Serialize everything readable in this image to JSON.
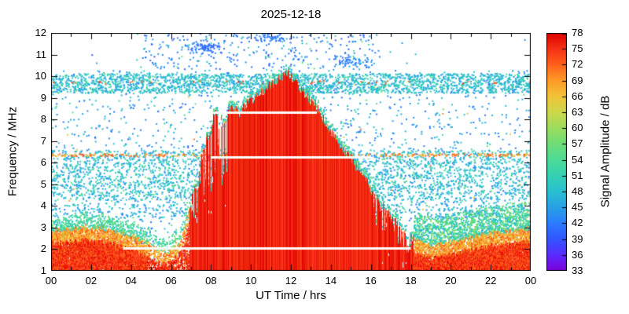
{
  "chart_data": {
    "type": "heatmap",
    "title": "2025-12-18",
    "xlabel": "UT Time / hrs",
    "ylabel": "Frequency / MHz",
    "xlim": [
      0,
      24
    ],
    "ylim": [
      1,
      12
    ],
    "grid": false,
    "x_ticks": [
      {
        "v": 0,
        "label": "00"
      },
      {
        "v": 2,
        "label": "02"
      },
      {
        "v": 4,
        "label": "04"
      },
      {
        "v": 6,
        "label": "06"
      },
      {
        "v": 8,
        "label": "08"
      },
      {
        "v": 10,
        "label": "10"
      },
      {
        "v": 12,
        "label": "12"
      },
      {
        "v": 14,
        "label": "14"
      },
      {
        "v": 16,
        "label": "16"
      },
      {
        "v": 18,
        "label": "18"
      },
      {
        "v": 20,
        "label": "20"
      },
      {
        "v": 22,
        "label": "22"
      },
      {
        "v": 24,
        "label": "00"
      }
    ],
    "x_minor_step_hrs": 1,
    "y_ticks": [
      1,
      2,
      3,
      4,
      5,
      6,
      7,
      8,
      9,
      10,
      11,
      12
    ],
    "colorbar": {
      "label": "Signal Amplitude / dB",
      "min": 33,
      "max": 78,
      "ticks": [
        33,
        36,
        39,
        42,
        45,
        48,
        51,
        54,
        57,
        60,
        63,
        66,
        69,
        72,
        75,
        78
      ],
      "stops": [
        {
          "v": 33,
          "c": "#7d00d9"
        },
        {
          "v": 36,
          "c": "#5a2bff"
        },
        {
          "v": 39,
          "c": "#3355ff"
        },
        {
          "v": 42,
          "c": "#2b7dff"
        },
        {
          "v": 45,
          "c": "#28a0e6"
        },
        {
          "v": 48,
          "c": "#28c0d2"
        },
        {
          "v": 51,
          "c": "#34d2b4"
        },
        {
          "v": 54,
          "c": "#4cdc96"
        },
        {
          "v": 57,
          "c": "#6edd78"
        },
        {
          "v": 60,
          "c": "#9cdd5f"
        },
        {
          "v": 63,
          "c": "#cdd84b"
        },
        {
          "v": 66,
          "c": "#f2c438"
        },
        {
          "v": 69,
          "c": "#ff9a26"
        },
        {
          "v": 72,
          "c": "#ff611c"
        },
        {
          "v": 75,
          "c": "#f53015"
        },
        {
          "v": 78,
          "c": "#e10000"
        }
      ]
    },
    "features": {
      "daytime_echo": {
        "t_hrs": [
          0,
          1,
          2,
          3,
          4,
          5,
          5.8,
          6.4,
          7.0,
          7.4,
          7.8,
          8.2,
          8.6,
          9.0,
          9.4,
          9.8,
          10.2,
          10.6,
          11.0,
          11.4,
          11.8,
          12.2,
          12.6,
          13.0,
          13.5,
          14.0,
          14.5,
          15.0,
          15.5,
          16.0,
          16.5,
          17.0,
          17.5,
          18.0,
          19.0,
          20.0,
          21.0,
          22.0,
          23.0,
          24.0
        ],
        "fmax_mhz": [
          2.9,
          3.0,
          3.1,
          2.9,
          2.7,
          2.2,
          1.9,
          2.4,
          4.2,
          5.8,
          7.2,
          8.3,
          7.9,
          8.6,
          8.3,
          8.8,
          9.0,
          9.3,
          9.6,
          9.9,
          10.2,
          9.8,
          9.3,
          8.9,
          8.3,
          7.4,
          6.8,
          6.2,
          5.5,
          4.8,
          4.1,
          3.5,
          3.0,
          2.5,
          2.2,
          2.4,
          2.6,
          2.8,
          2.9,
          3.0
        ],
        "db_core": 76,
        "solid_t_range": [
          6.9,
          18.1
        ]
      },
      "dropout_lines_white": [
        {
          "f_mhz": 8.35,
          "t_start": 8.2,
          "t_end": 13.3
        },
        {
          "f_mhz": 6.25,
          "t_start": 8.0,
          "t_end": 16.0
        },
        {
          "f_mhz": 2.05,
          "t_start": 3.6,
          "t_end": 18.0
        }
      ],
      "scatter_bands": [
        {
          "f_min": 4.3,
          "f_max": 6.6,
          "db_min": 44,
          "db_max": 52,
          "count": 3000,
          "t_min": 0,
          "t_max": 24
        },
        {
          "f_min": 9.25,
          "f_max": 10.15,
          "db_min": 44,
          "db_max": 52,
          "count": 2400,
          "t_min": 0,
          "t_max": 24
        },
        {
          "f_min": 10.35,
          "f_max": 11.95,
          "db_min": 39,
          "db_max": 45,
          "count": 220,
          "t_min": 4.5,
          "t_max": 16.5
        },
        {
          "f_min": 3.4,
          "f_max": 4.3,
          "db_min": 43,
          "db_max": 50,
          "count": 500,
          "t_min": 0,
          "t_max": 24
        }
      ],
      "dotted_rows": [
        {
          "f_mhz": 6.38,
          "db_min": 64,
          "db_max": 74,
          "count": 320
        },
        {
          "f_mhz": 9.75,
          "db_min": 68,
          "db_max": 76,
          "count": 40
        }
      ],
      "background_scatter": {
        "db_min": 40,
        "db_max": 50,
        "count": 2300
      },
      "clusters_high_blue": [
        {
          "t": 7.6,
          "f": 11.4,
          "st": 0.7,
          "sf": 0.25,
          "n": 80,
          "db_min": 39,
          "db_max": 44
        },
        {
          "t": 10.8,
          "f": 11.8,
          "st": 1.0,
          "sf": 0.2,
          "n": 55,
          "db_min": 39,
          "db_max": 44
        },
        {
          "t": 15.0,
          "f": 10.7,
          "st": 0.8,
          "sf": 0.3,
          "n": 60,
          "db_min": 40,
          "db_max": 45
        }
      ],
      "night_fringe": {
        "left_db_min": 48,
        "left_db_max": 58,
        "right_db_min": 46,
        "right_db_max": 60
      }
    }
  }
}
